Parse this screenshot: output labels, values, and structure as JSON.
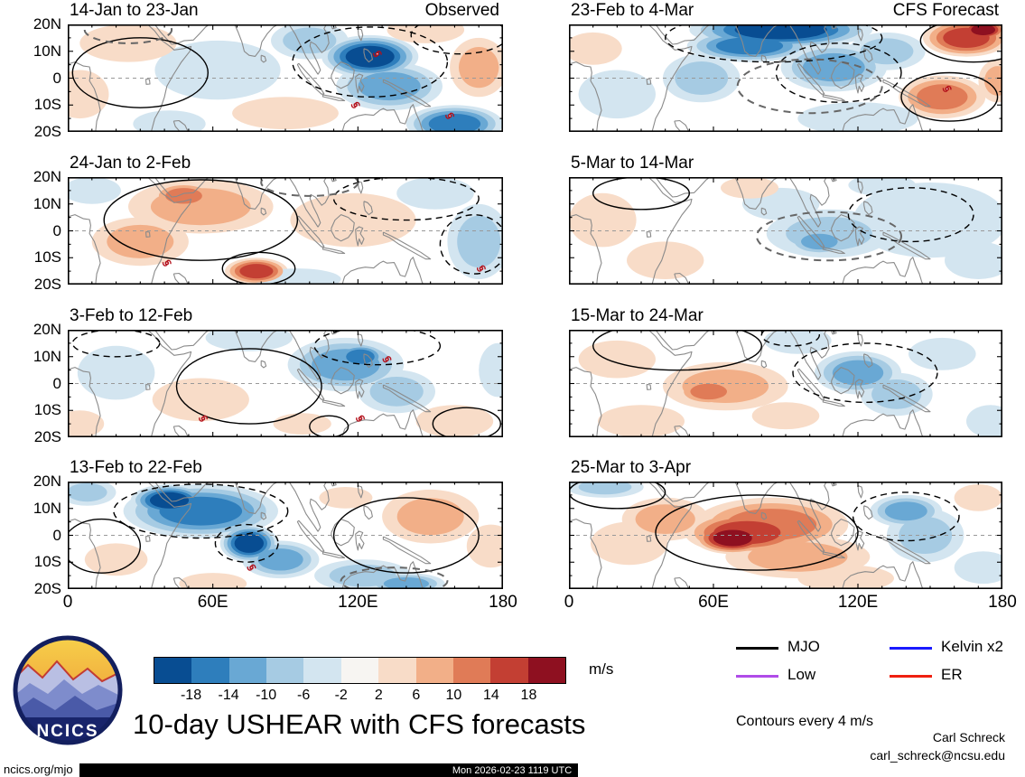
{
  "chart_data": {
    "type": "heatmap",
    "subtype": "filled-contour longitude-latitude anomaly maps",
    "title": "10-day USHEAR with CFS forecasts",
    "units": "m/s",
    "column_labels": {
      "observed": "Observed",
      "forecast": "CFS Forecast"
    },
    "x_axis": {
      "ticks": [
        "0",
        "60E",
        "120E",
        "180"
      ],
      "range_deg_lon": [
        0,
        180
      ]
    },
    "y_axis": {
      "ticks": [
        "20N",
        "10N",
        "0",
        "10S",
        "20S"
      ],
      "range_deg_lat": [
        20,
        -20
      ]
    },
    "colorbar": {
      "labels": [
        "-18",
        "-14",
        "-10",
        "-6",
        "-2",
        "2",
        "6",
        "10",
        "14",
        "18"
      ],
      "units": "m/s",
      "colors": [
        "#084d92",
        "#2e7ebc",
        "#69a8d4",
        "#a6cbe3",
        "#d3e5f0",
        "#f7f5f2",
        "#f8dcc8",
        "#f2af88",
        "#e07b57",
        "#c33f33",
        "#8e1020"
      ]
    },
    "contour_interval_m_s": 4,
    "panels": [
      {
        "title": "14-Jan to 23-Jan",
        "anomalies": [
          [
            125,
            8,
            20,
            8,
            -5
          ],
          [
            133,
            -3,
            22,
            9,
            -3
          ],
          [
            160,
            -17,
            20,
            7,
            -4
          ],
          [
            100,
            14,
            16,
            7,
            -2
          ],
          [
            62,
            3,
            26,
            11,
            -1
          ],
          [
            25,
            13,
            20,
            7,
            1
          ],
          [
            5,
            -6,
            12,
            9,
            1
          ],
          [
            170,
            4,
            12,
            11,
            2
          ],
          [
            148,
            18,
            16,
            5,
            1
          ],
          [
            90,
            -13,
            22,
            6,
            1
          ],
          [
            42,
            -17,
            15,
            5,
            -1
          ]
        ],
        "contours": [
          [
            125,
            6,
            32,
            13,
            "dashed"
          ],
          [
            162,
            16,
            20,
            7,
            "dashed"
          ],
          [
            30,
            2,
            28,
            13,
            "solid"
          ],
          [
            25,
            18,
            18,
            5,
            "gdashed"
          ]
        ],
        "storms": [
          [
            128,
            9
          ],
          [
            119,
            -10
          ],
          [
            158,
            -14
          ]
        ]
      },
      {
        "title": "24-Jan to 2-Feb",
        "anomalies": [
          [
            55,
            9,
            30,
            10,
            2
          ],
          [
            48,
            13,
            13,
            5,
            3
          ],
          [
            78,
            -15,
            13,
            5,
            4
          ],
          [
            30,
            -4,
            20,
            9,
            2
          ],
          [
            118,
            4,
            26,
            10,
            1
          ],
          [
            170,
            -4,
            13,
            14,
            -2
          ],
          [
            152,
            14,
            16,
            6,
            -1
          ],
          [
            95,
            -18,
            18,
            4,
            -1
          ],
          [
            10,
            15,
            12,
            5,
            -1
          ]
        ],
        "contours": [
          [
            55,
            4,
            40,
            15,
            "solid"
          ],
          [
            79,
            -14,
            15,
            6,
            "solid"
          ],
          [
            140,
            12,
            30,
            8,
            "dashed"
          ],
          [
            168,
            -5,
            14,
            11,
            "dashed"
          ],
          [
            100,
            18,
            20,
            5,
            "gdashed"
          ]
        ],
        "storms": [
          [
            41,
            -12
          ],
          [
            171,
            -14
          ]
        ]
      },
      {
        "title": "3-Feb to 12-Feb",
        "anomalies": [
          [
            115,
            7,
            24,
            10,
            -3
          ],
          [
            121,
            10,
            11,
            5,
            -4
          ],
          [
            136,
            -3,
            16,
            8,
            -2
          ],
          [
            20,
            4,
            16,
            10,
            -1
          ],
          [
            75,
            17,
            18,
            5,
            -1
          ],
          [
            55,
            -6,
            20,
            8,
            1
          ],
          [
            160,
            -14,
            16,
            6,
            1
          ],
          [
            5,
            -15,
            10,
            5,
            1
          ],
          [
            97,
            -15,
            12,
            4,
            1
          ],
          [
            178,
            5,
            8,
            10,
            -1
          ]
        ],
        "contours": [
          [
            75,
            -1,
            30,
            14,
            "solid"
          ],
          [
            128,
            14,
            26,
            7,
            "dashed"
          ],
          [
            20,
            15,
            18,
            5,
            "dashed"
          ],
          [
            108,
            -16,
            8,
            4,
            "solid"
          ],
          [
            165,
            -15,
            14,
            6,
            "solid"
          ]
        ],
        "storms": [
          [
            132,
            9
          ],
          [
            56,
            -13
          ],
          [
            121,
            -13
          ]
        ]
      },
      {
        "title": "13-Feb to 22-Feb",
        "anomalies": [
          [
            55,
            9,
            32,
            10,
            -4
          ],
          [
            42,
            13,
            16,
            6,
            -5
          ],
          [
            75,
            -3,
            12,
            7,
            -5
          ],
          [
            88,
            -9,
            16,
            7,
            -3
          ],
          [
            8,
            16,
            12,
            5,
            -2
          ],
          [
            122,
            -15,
            20,
            6,
            -2
          ],
          [
            140,
            -18,
            16,
            4,
            -3
          ],
          [
            150,
            7,
            20,
            10,
            2
          ],
          [
            175,
            -4,
            10,
            8,
            1
          ],
          [
            115,
            14,
            11,
            4,
            1
          ],
          [
            20,
            -9,
            13,
            6,
            1
          ],
          [
            60,
            -18,
            14,
            4,
            1
          ]
        ],
        "contours": [
          [
            55,
            9,
            36,
            10,
            "dashed"
          ],
          [
            74,
            -3,
            13,
            7,
            "dashed"
          ],
          [
            140,
            0,
            30,
            14,
            "solid"
          ],
          [
            14,
            -4,
            16,
            10,
            "solid"
          ],
          [
            135,
            -17,
            22,
            5,
            "gdashed"
          ]
        ],
        "storms": [
          [
            76,
            -12
          ]
        ]
      },
      {
        "title": "23-Feb to 4-Mar",
        "anomalies": [
          [
            88,
            18,
            38,
            7,
            -5
          ],
          [
            75,
            12,
            26,
            6,
            -4
          ],
          [
            110,
            4,
            22,
            9,
            -3
          ],
          [
            132,
            10,
            16,
            7,
            -2
          ],
          [
            55,
            0,
            16,
            9,
            -2
          ],
          [
            20,
            -6,
            16,
            9,
            -1
          ],
          [
            165,
            15,
            18,
            7,
            4
          ],
          [
            172,
            18,
            10,
            4,
            5
          ],
          [
            155,
            -7,
            18,
            8,
            3
          ],
          [
            178,
            -1,
            8,
            8,
            2
          ],
          [
            10,
            11,
            12,
            6,
            1
          ],
          [
            120,
            -15,
            25,
            6,
            -1
          ]
        ],
        "contours": [
          [
            85,
            15,
            45,
            9,
            "dashed"
          ],
          [
            112,
            2,
            26,
            11,
            "dashed"
          ],
          [
            158,
            -7,
            20,
            9,
            "solid"
          ],
          [
            168,
            14,
            22,
            8,
            "solid"
          ],
          [
            100,
            -3,
            30,
            10,
            "gdashed"
          ]
        ],
        "storms": [
          [
            157,
            -4
          ]
        ]
      },
      {
        "title": "5-Mar to 14-Mar",
        "anomalies": [
          [
            108,
            -1,
            26,
            9,
            -2
          ],
          [
            104,
            -4,
            13,
            5,
            -3
          ],
          [
            150,
            4,
            32,
            14,
            -1
          ],
          [
            170,
            -11,
            14,
            7,
            -1
          ],
          [
            88,
            10,
            16,
            6,
            -1
          ],
          [
            14,
            4,
            14,
            10,
            1
          ],
          [
            40,
            -11,
            16,
            7,
            1
          ],
          [
            75,
            16,
            12,
            4,
            1
          ],
          [
            130,
            17,
            14,
            4,
            -1
          ]
        ],
        "contours": [
          [
            108,
            -2,
            30,
            9,
            "gdashed"
          ],
          [
            142,
            6,
            26,
            10,
            "dashed"
          ],
          [
            30,
            14,
            20,
            6,
            "solid"
          ]
        ],
        "storms": []
      },
      {
        "title": "15-Mar to 24-Mar",
        "anomalies": [
          [
            65,
            -1,
            26,
            9,
            2
          ],
          [
            58,
            -3,
            13,
            5,
            3
          ],
          [
            20,
            9,
            16,
            7,
            1
          ],
          [
            30,
            -14,
            18,
            6,
            1
          ],
          [
            120,
            4,
            18,
            8,
            -3
          ],
          [
            136,
            -4,
            15,
            8,
            -2
          ],
          [
            155,
            11,
            14,
            6,
            -1
          ],
          [
            95,
            16,
            14,
            5,
            -1
          ],
          [
            175,
            -14,
            10,
            6,
            -1
          ],
          [
            90,
            -12,
            14,
            5,
            1
          ]
        ],
        "contours": [
          [
            45,
            14,
            35,
            9,
            "solid"
          ],
          [
            123,
            4,
            30,
            11,
            "dashed"
          ],
          [
            92,
            18,
            12,
            4,
            "dashed"
          ]
        ],
        "storms": []
      },
      {
        "title": "25-Mar to 3-Apr",
        "anomalies": [
          [
            68,
            -1,
            16,
            6,
            5
          ],
          [
            74,
            1,
            26,
            8,
            4
          ],
          [
            84,
            4,
            32,
            10,
            3
          ],
          [
            95,
            -8,
            30,
            8,
            2
          ],
          [
            40,
            6,
            18,
            8,
            2
          ],
          [
            25,
            -3,
            16,
            8,
            1
          ],
          [
            140,
            9,
            15,
            6,
            -3
          ],
          [
            148,
            0,
            16,
            10,
            -2
          ],
          [
            15,
            18,
            16,
            4,
            -2
          ],
          [
            172,
            -12,
            12,
            6,
            -1
          ],
          [
            170,
            14,
            10,
            5,
            1
          ],
          [
            115,
            -16,
            20,
            5,
            1
          ]
        ],
        "contours": [
          [
            78,
            1,
            42,
            14,
            "solid"
          ],
          [
            140,
            7,
            22,
            9,
            "dashed"
          ],
          [
            20,
            16,
            20,
            6,
            "solid"
          ]
        ],
        "storms": []
      }
    ]
  },
  "legend": {
    "items": [
      {
        "label": "MJO",
        "color": "#000000"
      },
      {
        "label": "Kelvin x2",
        "color": "#1a1aff"
      },
      {
        "label": "Low",
        "color": "#b04ce8"
      },
      {
        "label": "ER",
        "color": "#ef2010"
      }
    ],
    "note": "Contours every 4 m/s"
  },
  "logo": {
    "text": "NCICS"
  },
  "footer": {
    "site": "ncics.org/mjo",
    "timestamp": "Mon 2026-02-23 1119 UTC",
    "credit_name": "Carl Schreck",
    "credit_email": "carl_schreck@ncsu.edu"
  }
}
